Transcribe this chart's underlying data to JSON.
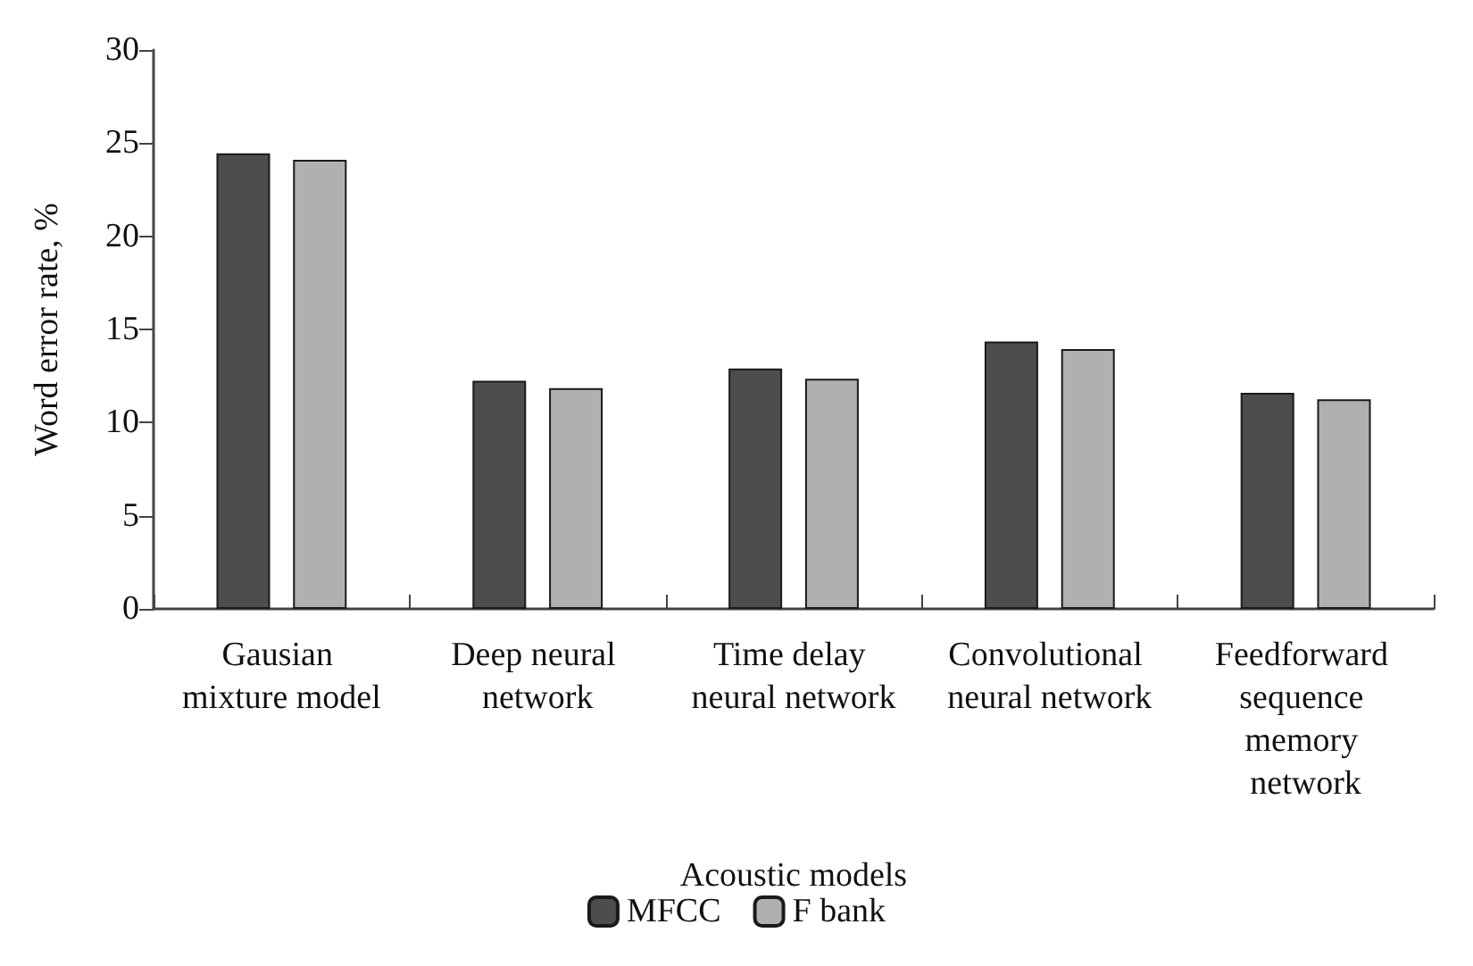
{
  "chart_data": {
    "type": "bar",
    "xlabel": "Acoustic models",
    "ylabel": "Word error rate, %",
    "categories": [
      "Gausian mixture model",
      "Deep neural network",
      "Time delay neural network",
      "Convolutional neural network",
      "Feedforward sequence memory network"
    ],
    "series": [
      {
        "name": "MFCC",
        "color": "#4d4d4b",
        "values": [
          24.45,
          12.25,
          12.9,
          14.35,
          11.6
        ]
      },
      {
        "name": "F bank",
        "color": "#b0b0b0",
        "values": [
          24.1,
          11.85,
          12.35,
          13.95,
          11.25
        ]
      }
    ],
    "ylim": [
      0,
      30
    ],
    "yticks": [
      0,
      5,
      10,
      15,
      20,
      25,
      30
    ],
    "grid": false,
    "legend": "bottom"
  }
}
